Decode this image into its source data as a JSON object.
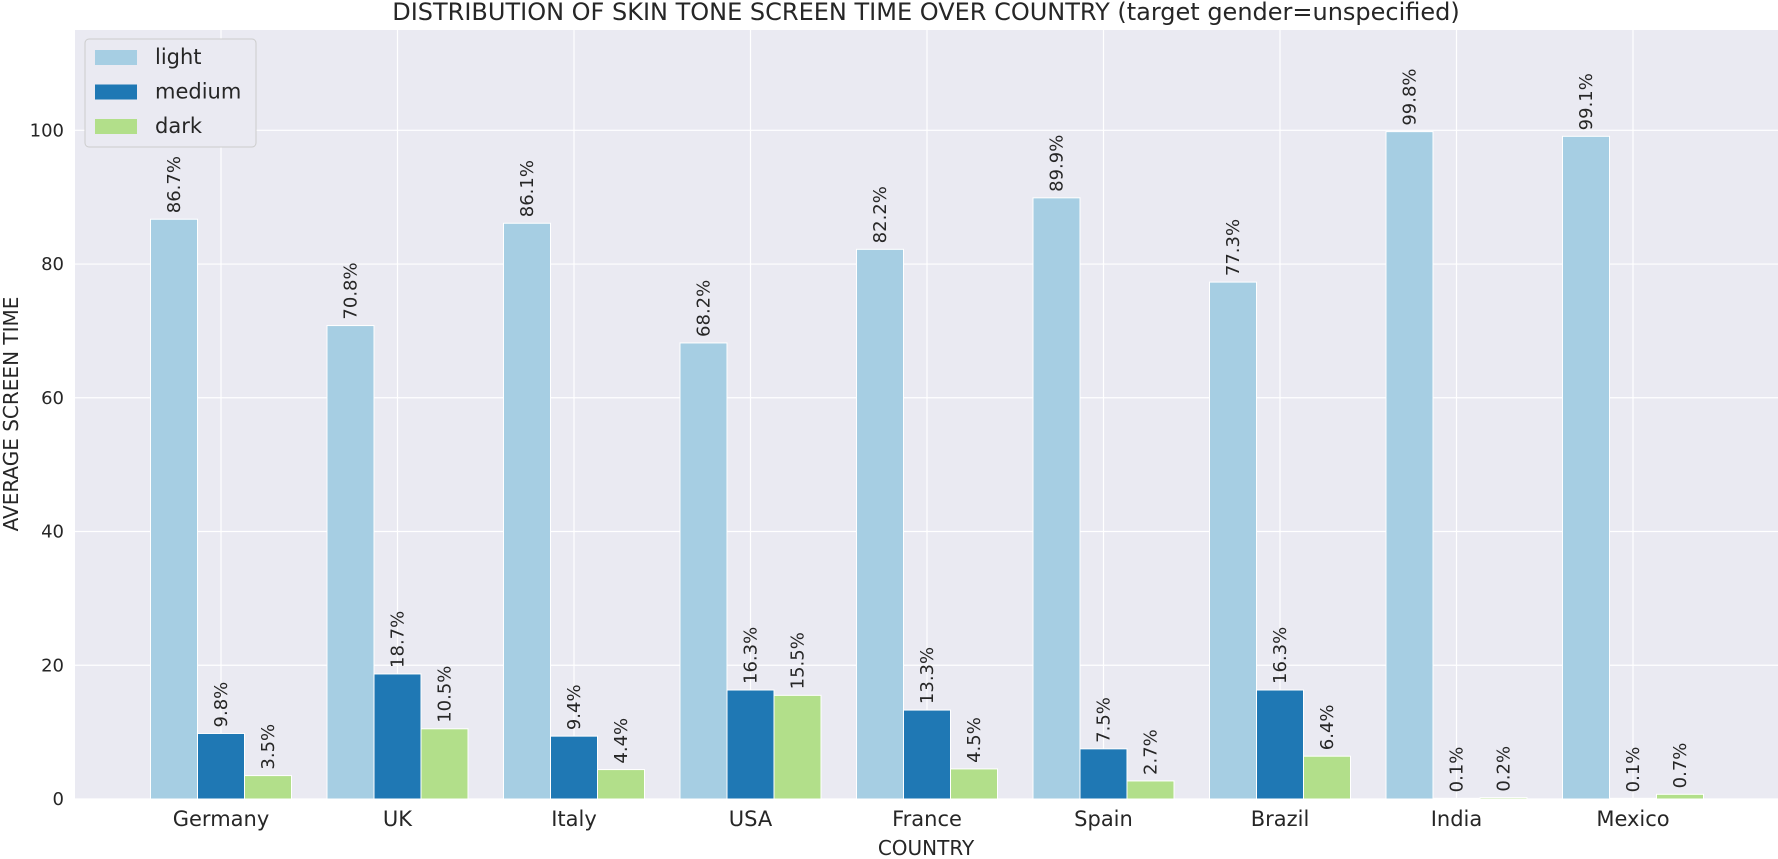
{
  "chart_data": {
    "type": "bar",
    "title": "DISTRIBUTION OF SKIN TONE SCREEN TIME OVER COUNTRY (target gender=unspecified)",
    "xlabel": "COUNTRY",
    "ylabel": "AVERAGE SCREEN TIME",
    "ylim": [
      0,
      115
    ],
    "yticks": [
      0,
      20,
      40,
      60,
      80,
      100
    ],
    "grid": true,
    "legend_position": "top-left",
    "categories": [
      "Germany",
      "UK",
      "Italy",
      "USA",
      "France",
      "Spain",
      "Brazil",
      "India",
      "Mexico"
    ],
    "series": [
      {
        "name": "light",
        "color": "#a6cee3",
        "values": [
          86.7,
          70.8,
          86.1,
          68.2,
          82.2,
          89.9,
          77.3,
          99.8,
          99.1
        ],
        "labels": [
          "86.7%",
          "70.8%",
          "86.1%",
          "68.2%",
          "82.2%",
          "89.9%",
          "77.3%",
          "99.8%",
          "99.1%"
        ]
      },
      {
        "name": "medium",
        "color": "#1f78b4",
        "values": [
          9.8,
          18.7,
          9.4,
          16.3,
          13.3,
          7.5,
          16.3,
          0.1,
          0.1
        ],
        "labels": [
          "9.8%",
          "18.7%",
          "9.4%",
          "16.3%",
          "13.3%",
          "7.5%",
          "16.3%",
          "0.1%",
          "0.1%"
        ]
      },
      {
        "name": "dark",
        "color": "#b2df8a",
        "values": [
          3.5,
          10.5,
          4.4,
          15.5,
          4.5,
          2.7,
          6.4,
          0.2,
          0.7
        ],
        "labels": [
          "3.5%",
          "10.5%",
          "4.4%",
          "15.5%",
          "4.5%",
          "2.7%",
          "6.4%",
          "0.2%",
          "0.7%"
        ]
      }
    ]
  }
}
